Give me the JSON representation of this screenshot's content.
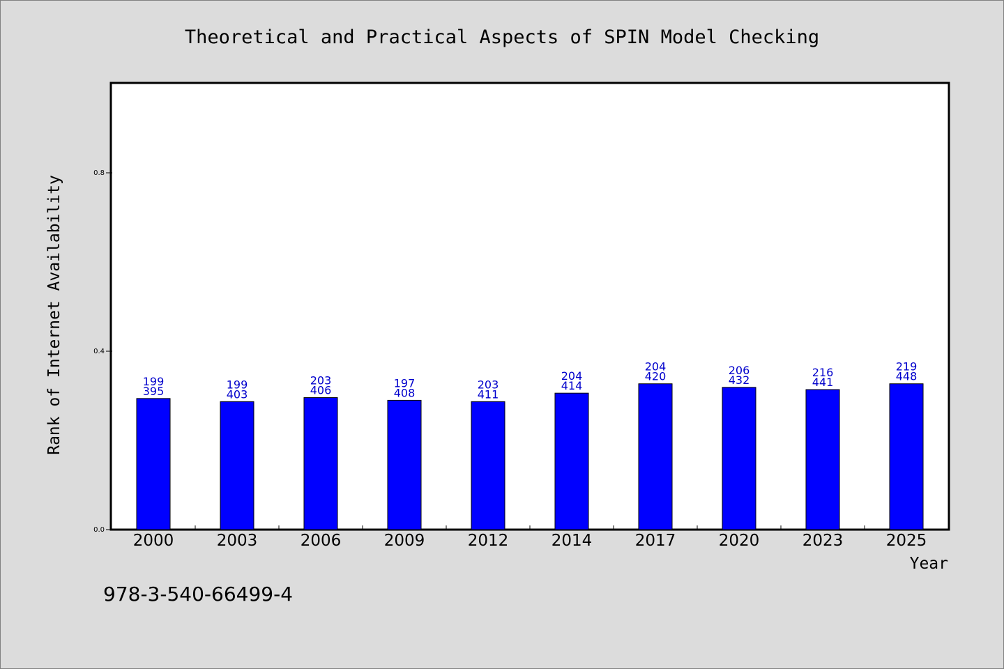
{
  "chart_data": {
    "type": "bar",
    "title": "Theoretical and Practical Aspects of SPIN Model Checking",
    "xlabel": "Year",
    "ylabel": "Rank of Internet Availability",
    "categories": [
      "2000",
      "2003",
      "2006",
      "2009",
      "2012",
      "2014",
      "2017",
      "2020",
      "2023",
      "2025"
    ],
    "values": [
      0.294,
      0.287,
      0.296,
      0.29,
      0.287,
      0.306,
      0.327,
      0.319,
      0.314,
      0.327
    ],
    "labels_top": [
      "199",
      "199",
      "203",
      "197",
      "203",
      "204",
      "204",
      "206",
      "216",
      "219"
    ],
    "labels_bottom": [
      "395",
      "403",
      "406",
      "408",
      "411",
      "414",
      "420",
      "432",
      "441",
      "448"
    ],
    "yticks": [
      "0.0",
      "0.4",
      "0.8"
    ],
    "ytick_values": [
      0.0,
      0.4,
      0.8
    ],
    "ylim": [
      0,
      1.0
    ],
    "bar_color": "#0000ff",
    "label_color": "#0000cc",
    "grid": false,
    "legend": "none"
  },
  "footer": {
    "isbn": "978-3-540-66499-4"
  }
}
